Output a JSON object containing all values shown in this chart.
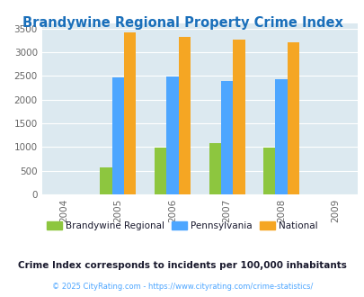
{
  "title": "Brandywine Regional Property Crime Index",
  "title_color": "#1a6fba",
  "years": [
    2004,
    2005,
    2006,
    2007,
    2008,
    2009
  ],
  "data_years": [
    2005,
    2006,
    2007,
    2008
  ],
  "brandywine": [
    570,
    985,
    1090,
    980
  ],
  "pennsylvania": [
    2460,
    2480,
    2385,
    2435
  ],
  "national": [
    3415,
    3330,
    3260,
    3200
  ],
  "bar_colors": {
    "brandywine": "#8dc63f",
    "pennsylvania": "#4da6ff",
    "national": "#f5a623"
  },
  "legend_labels": [
    "Brandywine Regional",
    "Pennsylvania",
    "National"
  ],
  "legend_text_color": "#1a1a2e",
  "subtitle": "Crime Index corresponds to incidents per 100,000 inhabitants",
  "subtitle_color": "#1a1a2e",
  "footer": "© 2025 CityRating.com - https://www.cityrating.com/crime-statistics/",
  "footer_color": "#4da6ff",
  "ylim": [
    0,
    3600
  ],
  "yticks": [
    0,
    500,
    1000,
    1500,
    2000,
    2500,
    3000,
    3500
  ],
  "bg_color": "#dce9f0",
  "fig_bg": "#ffffff",
  "bar_width": 0.22
}
